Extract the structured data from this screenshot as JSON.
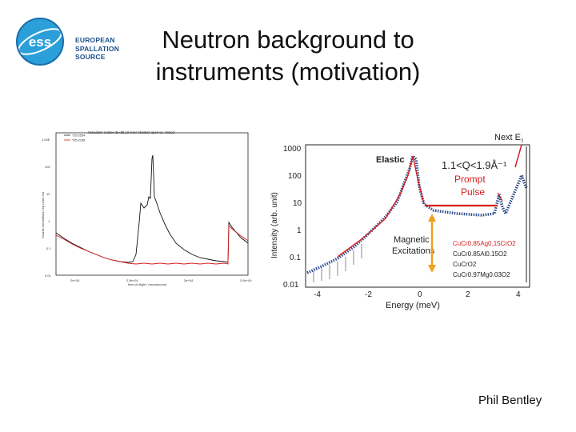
{
  "slide": {
    "title_line1": "Neutron background to",
    "title_line2": "instruments (motivation)",
    "author": "Phil Bentley"
  },
  "logo": {
    "mark": "ess",
    "line1": "EUROPEAN",
    "line2": "SPALLATION",
    "line3": "SOURCE"
  },
  "left_plot": {
    "title": "Vanadium scatter, Ei=35.12 meV, shutters open vs. closed",
    "legend": [
      "T25-2554",
      "T25-2158"
    ],
    "ylabel": "Counts normalised / bp norm est",
    "xlabel": "time-of-flight / microsecond",
    "yticks": [
      "1.00E",
      "100",
      "10",
      "1",
      "0.1",
      "0.01"
    ],
    "xticks": [
      "2e+04",
      "2.5e+04",
      "3e+04",
      "3.5e+04"
    ]
  },
  "right_plot": {
    "ylabel": "Intensity (arb. unit)",
    "xlabel": "Energy (meV)",
    "yticks": [
      "1000",
      "100",
      "10",
      "1",
      "0.1",
      "0.01"
    ],
    "xticks": [
      "-4",
      "-2",
      "0",
      "2",
      "4"
    ],
    "label_elastic": "Elastic",
    "label_q": "1.1<Q<1.9Å⁻¹",
    "label_prompt1": "Prompt",
    "label_prompt2": "Pulse",
    "label_next": "Next E",
    "label_next_sub": "i",
    "label_mag1": "Magnetic",
    "label_mag2": "Excitations",
    "legend": [
      "CuCr0.85Ag0.15CrO2",
      "CuCr0.85Al0.15O2",
      "CuCrO2",
      "CuCr0.97Mg0.03O2"
    ],
    "colors": {
      "red": "#d42020",
      "orange": "#f0a020",
      "blue": "#2a4a8c",
      "dots": "#1a2a5a"
    }
  }
}
